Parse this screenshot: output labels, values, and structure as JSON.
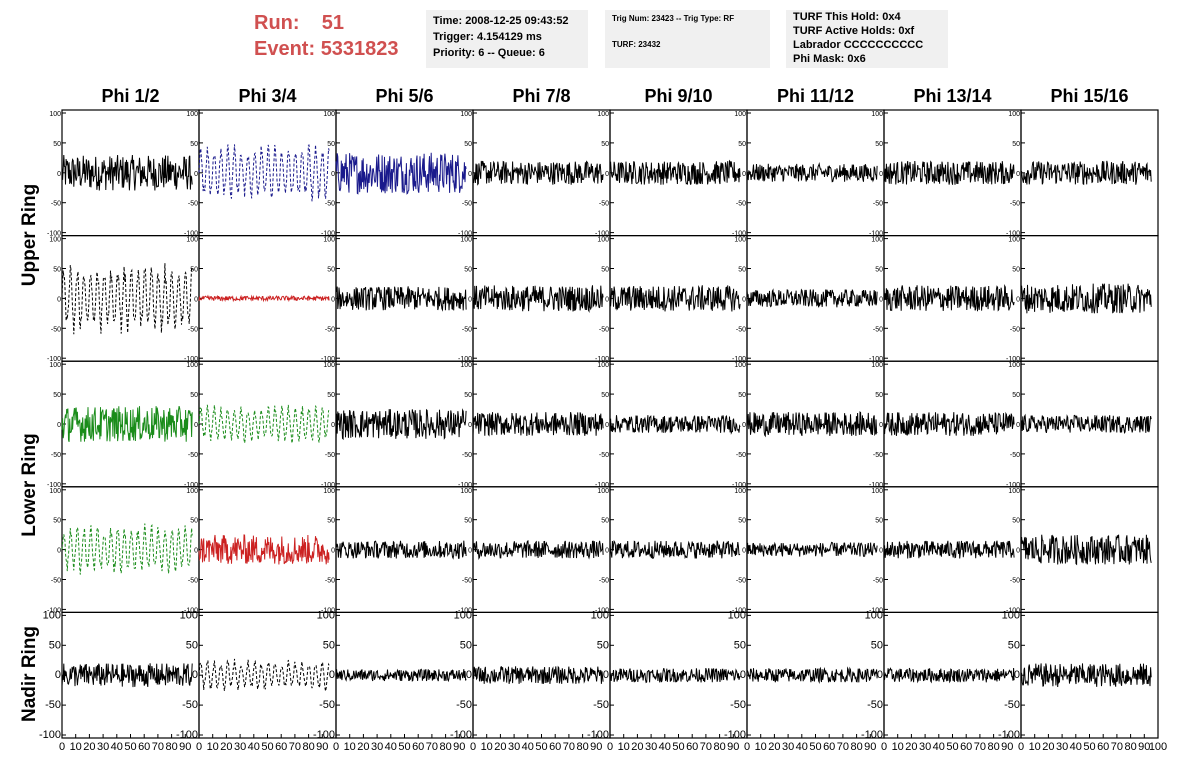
{
  "header": {
    "run_label": "Run:",
    "run_value": "51",
    "event_label": "Event:",
    "event_value": "5331823",
    "box1": [
      "Time: 2008-12-25 09:43:52",
      "Trigger: 4.154129 ms",
      "Priority: 6 -- Queue: 6"
    ],
    "box2": [
      "Trig Num: 23423 -- Trig Type: RF",
      "TURF: 23432"
    ],
    "box3": [
      "TURF This Hold: 0x4",
      "TURF Active Holds: 0xf",
      "Labrador CCCCCCCCCC",
      "Phi Mask: 0x6"
    ]
  },
  "colors": {
    "header_text": "#d05050",
    "info_bg": "#f0f0f0",
    "black": "#000000",
    "blue": "#1a1a8c",
    "red": "#cc2222",
    "green": "#1a8c1a"
  },
  "chart_data": {
    "type": "line",
    "grid": false,
    "columns": [
      "Phi 1/2",
      "Phi 3/4",
      "Phi 5/6",
      "Phi 7/8",
      "Phi 9/10",
      "Phi 11/12",
      "Phi 13/14",
      "Phi 15/16"
    ],
    "rows": [
      "Upper Ring",
      "Upper Ring",
      "Lower Ring",
      "Lower Ring",
      "Nadir Ring"
    ],
    "ring_labels": [
      "Upper Ring",
      "Lower Ring",
      "Nadir Ring"
    ],
    "xlim": [
      0,
      100
    ],
    "ylim": [
      -105,
      105
    ],
    "y_ticks": [
      "100",
      "50",
      "0",
      "-50",
      "-100"
    ],
    "y_tick_values": [
      100,
      50,
      0,
      -50,
      -100
    ],
    "x_ticks": [
      "0",
      "10",
      "20",
      "30",
      "40",
      "50",
      "60",
      "70",
      "80",
      "90",
      "100"
    ],
    "x_tick_values": [
      0,
      10,
      20,
      30,
      40,
      50,
      60,
      70,
      80,
      90,
      100
    ],
    "panels": [
      {
        "row": 0,
        "col": 0,
        "color": "black",
        "style": "solid",
        "amplitude": 30,
        "x_end": 95
      },
      {
        "row": 0,
        "col": 1,
        "color": "blue",
        "style": "dashed",
        "amplitude": 45,
        "x_end": 95
      },
      {
        "row": 0,
        "col": 2,
        "color": "blue",
        "style": "solid",
        "amplitude": 35,
        "x_end": 95
      },
      {
        "row": 0,
        "col": 3,
        "color": "black",
        "style": "solid",
        "amplitude": 20,
        "x_end": 95
      },
      {
        "row": 0,
        "col": 4,
        "color": "black",
        "style": "solid",
        "amplitude": 20,
        "x_end": 95
      },
      {
        "row": 0,
        "col": 5,
        "color": "black",
        "style": "solid",
        "amplitude": 15,
        "x_end": 95
      },
      {
        "row": 0,
        "col": 6,
        "color": "black",
        "style": "solid",
        "amplitude": 20,
        "x_end": 95
      },
      {
        "row": 0,
        "col": 7,
        "color": "black",
        "style": "solid",
        "amplitude": 20,
        "x_end": 95
      },
      {
        "row": 1,
        "col": 0,
        "color": "black",
        "style": "dashed",
        "amplitude": 55,
        "x_end": 95
      },
      {
        "row": 1,
        "col": 1,
        "color": "red",
        "style": "solid",
        "amplitude": 4,
        "x_end": 95
      },
      {
        "row": 1,
        "col": 2,
        "color": "black",
        "style": "solid",
        "amplitude": 20,
        "x_end": 95
      },
      {
        "row": 1,
        "col": 3,
        "color": "black",
        "style": "solid",
        "amplitude": 22,
        "x_end": 95
      },
      {
        "row": 1,
        "col": 4,
        "color": "black",
        "style": "solid",
        "amplitude": 22,
        "x_end": 95
      },
      {
        "row": 1,
        "col": 5,
        "color": "black",
        "style": "solid",
        "amplitude": 15,
        "x_end": 95
      },
      {
        "row": 1,
        "col": 6,
        "color": "black",
        "style": "solid",
        "amplitude": 22,
        "x_end": 95
      },
      {
        "row": 1,
        "col": 7,
        "color": "black",
        "style": "solid",
        "amplitude": 25,
        "x_end": 95
      },
      {
        "row": 2,
        "col": 0,
        "color": "green",
        "style": "solid",
        "amplitude": 30,
        "x_end": 95
      },
      {
        "row": 2,
        "col": 1,
        "color": "green",
        "style": "dashed",
        "amplitude": 30,
        "x_end": 95
      },
      {
        "row": 2,
        "col": 2,
        "color": "black",
        "style": "solid",
        "amplitude": 25,
        "x_end": 95
      },
      {
        "row": 2,
        "col": 3,
        "color": "black",
        "style": "solid",
        "amplitude": 20,
        "x_end": 95
      },
      {
        "row": 2,
        "col": 4,
        "color": "black",
        "style": "solid",
        "amplitude": 15,
        "x_end": 95
      },
      {
        "row": 2,
        "col": 5,
        "color": "black",
        "style": "solid",
        "amplitude": 20,
        "x_end": 95
      },
      {
        "row": 2,
        "col": 6,
        "color": "black",
        "style": "solid",
        "amplitude": 20,
        "x_end": 95
      },
      {
        "row": 2,
        "col": 7,
        "color": "black",
        "style": "solid",
        "amplitude": 15,
        "x_end": 95
      },
      {
        "row": 3,
        "col": 0,
        "color": "green",
        "style": "dashed",
        "amplitude": 40,
        "x_end": 95
      },
      {
        "row": 3,
        "col": 1,
        "color": "red",
        "style": "solid",
        "amplitude": 25,
        "x_end": 95
      },
      {
        "row": 3,
        "col": 2,
        "color": "black",
        "style": "solid",
        "amplitude": 15,
        "x_end": 95
      },
      {
        "row": 3,
        "col": 3,
        "color": "black",
        "style": "solid",
        "amplitude": 15,
        "x_end": 95
      },
      {
        "row": 3,
        "col": 4,
        "color": "black",
        "style": "solid",
        "amplitude": 15,
        "x_end": 95
      },
      {
        "row": 3,
        "col": 5,
        "color": "black",
        "style": "solid",
        "amplitude": 12,
        "x_end": 95
      },
      {
        "row": 3,
        "col": 6,
        "color": "black",
        "style": "solid",
        "amplitude": 15,
        "x_end": 95
      },
      {
        "row": 3,
        "col": 7,
        "color": "black",
        "style": "solid",
        "amplitude": 25,
        "x_end": 95
      },
      {
        "row": 4,
        "col": 0,
        "color": "black",
        "style": "solid",
        "amplitude": 20,
        "x_end": 95
      },
      {
        "row": 4,
        "col": 1,
        "color": "black",
        "style": "dashed",
        "amplitude": 25,
        "x_end": 95
      },
      {
        "row": 4,
        "col": 2,
        "color": "black",
        "style": "solid",
        "amplitude": 10,
        "x_end": 95
      },
      {
        "row": 4,
        "col": 3,
        "color": "black",
        "style": "solid",
        "amplitude": 15,
        "x_end": 95
      },
      {
        "row": 4,
        "col": 4,
        "color": "black",
        "style": "solid",
        "amplitude": 12,
        "x_end": 95
      },
      {
        "row": 4,
        "col": 5,
        "color": "black",
        "style": "solid",
        "amplitude": 12,
        "x_end": 95
      },
      {
        "row": 4,
        "col": 6,
        "color": "black",
        "style": "solid",
        "amplitude": 12,
        "x_end": 95
      },
      {
        "row": 4,
        "col": 7,
        "color": "black",
        "style": "solid",
        "amplitude": 20,
        "x_end": 95
      }
    ]
  }
}
